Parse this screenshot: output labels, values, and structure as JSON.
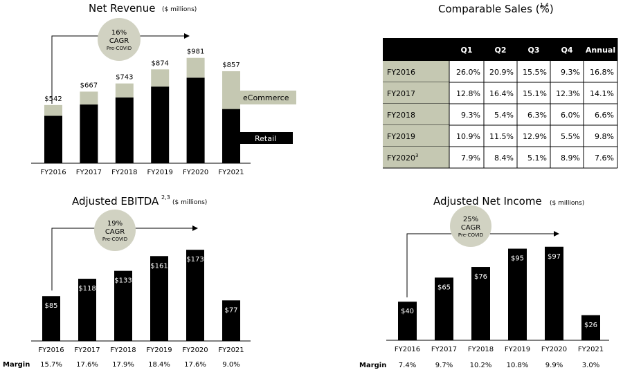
{
  "colors": {
    "bar": "#000000",
    "ecommerce": "#c5c8b2",
    "badge": "#d1d2c2",
    "table_shade": "#c5c8b2",
    "header": "#000000"
  },
  "net_revenue": {
    "title": "Net Revenue",
    "subtitle": "($ millions)",
    "cagr": {
      "pct": "16%",
      "label": "CAGR",
      "note": "Pre-COVID"
    },
    "legend": {
      "ecommerce": "eCommerce",
      "retail": "Retail"
    }
  },
  "comparable_sales": {
    "title": "Comparable Sales (%)",
    "superscript": "1,4",
    "columns": [
      "",
      "Q1",
      "Q2",
      "Q3",
      "Q4",
      "Annual"
    ],
    "rows": [
      {
        "year": "FY2016",
        "sup": "",
        "values": [
          "26.0%",
          "20.9%",
          "15.5%",
          "9.3%",
          "16.8%"
        ]
      },
      {
        "year": "FY2017",
        "sup": "",
        "values": [
          "12.8%",
          "16.4%",
          "15.1%",
          "12.3%",
          "14.1%"
        ]
      },
      {
        "year": "FY2018",
        "sup": "",
        "values": [
          "9.3%",
          "5.4%",
          "6.3%",
          "6.0%",
          "6.6%"
        ]
      },
      {
        "year": "FY2019",
        "sup": "",
        "values": [
          "10.9%",
          "11.5%",
          "12.9%",
          "5.5%",
          "9.8%"
        ]
      },
      {
        "year": "FY2020",
        "sup": "3",
        "values": [
          "7.9%",
          "8.4%",
          "5.1%",
          "8.9%",
          "7.6%"
        ]
      }
    ]
  },
  "adjusted_ebitda": {
    "title": "Adjusted EBITDA",
    "superscript": "2,3",
    "subtitle": "($ millions)",
    "cagr": {
      "pct": "19%",
      "label": "CAGR",
      "note": "Pre-COVID"
    },
    "margin_label": "Margin",
    "margins": [
      "15.7%",
      "17.6%",
      "17.9%",
      "18.4%",
      "17.6%",
      "9.0%"
    ]
  },
  "adjusted_net_income": {
    "title": "Adjusted Net Income",
    "subtitle": "($ millions)",
    "cagr": {
      "pct": "25%",
      "label": "CAGR",
      "note": "Pre-COVID"
    },
    "margin_label": "Margin",
    "margins": [
      "7.4%",
      "9.7%",
      "10.2%",
      "10.8%",
      "9.9%",
      "3.0%"
    ]
  },
  "chart_data": [
    {
      "type": "bar",
      "title": "Net Revenue ($ millions)",
      "categories": [
        "FY2016",
        "FY2017",
        "FY2018",
        "FY2019",
        "FY2020",
        "FY2021"
      ],
      "series": [
        {
          "name": "Retail",
          "values": [
            442,
            547,
            613,
            714,
            797,
            505
          ]
        },
        {
          "name": "eCommerce",
          "values": [
            100,
            120,
            130,
            160,
            184,
            352
          ]
        }
      ],
      "totals": [
        542,
        667,
        743,
        874,
        981,
        857
      ],
      "labels": [
        "$542",
        "$667",
        "$743",
        "$874",
        "$981",
        "$857"
      ],
      "ylim": [
        0,
        1050
      ]
    },
    {
      "type": "bar",
      "title": "Adjusted EBITDA ($ millions)",
      "categories": [
        "FY2016",
        "FY2017",
        "FY2018",
        "FY2019",
        "FY2020",
        "FY2021"
      ],
      "values": [
        85,
        118,
        133,
        161,
        173,
        77
      ],
      "labels": [
        "$85",
        "$118",
        "$133",
        "$161",
        "$173",
        "$77"
      ],
      "ylim": [
        0,
        185
      ]
    },
    {
      "type": "bar",
      "title": "Adjusted Net Income ($ millions)",
      "categories": [
        "FY2016",
        "FY2017",
        "FY2018",
        "FY2019",
        "FY2020",
        "FY2021"
      ],
      "values": [
        40,
        65,
        76,
        95,
        97,
        26
      ],
      "labels": [
        "$40",
        "$65",
        "$76",
        "$95",
        "$97",
        "$26"
      ],
      "ylim": [
        0,
        104
      ]
    }
  ]
}
